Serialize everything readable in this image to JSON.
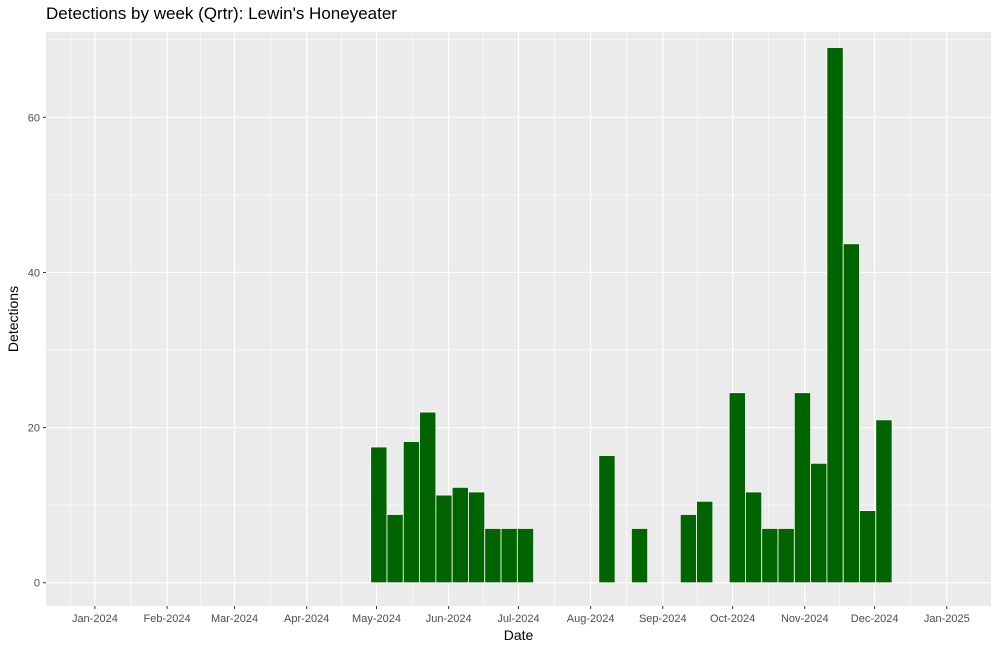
{
  "colors": {
    "panel_background": "#EBEBEB",
    "grid_major": "#FFFFFF",
    "bar_fill": "#006400",
    "bar_outline": "#FFFFFF"
  },
  "chart_data": {
    "type": "bar",
    "title": "Detections by week (Qrtr): Lewin's Honeyeater",
    "xlabel": "Date",
    "ylabel": "Detections",
    "x_axis": {
      "type": "date",
      "range": [
        "2023-12-11",
        "2025-01-20"
      ],
      "tick_dates": [
        "2024-01-01",
        "2024-02-01",
        "2024-03-01",
        "2024-04-01",
        "2024-05-01",
        "2024-06-01",
        "2024-07-01",
        "2024-08-01",
        "2024-09-01",
        "2024-10-01",
        "2024-11-01",
        "2024-12-01",
        "2025-01-01"
      ],
      "tick_labels": [
        "Jan-2024",
        "Feb-2024",
        "Mar-2024",
        "Apr-2024",
        "May-2024",
        "Jun-2024",
        "Jul-2024",
        "Aug-2024",
        "Sep-2024",
        "Oct-2024",
        "Nov-2024",
        "Dec-2024",
        "Jan-2025"
      ]
    },
    "y_axis": {
      "range": [
        -3,
        71
      ],
      "ticks": [
        0,
        20,
        40,
        60
      ],
      "tick_labels": [
        "0",
        "20",
        "40",
        "60"
      ]
    },
    "grid": true,
    "legend": "none",
    "bar_width_days": 7,
    "weeks": [
      {
        "week": "2024-04-29",
        "value": 17.5
      },
      {
        "week": "2024-05-06",
        "value": 8.8
      },
      {
        "week": "2024-05-13",
        "value": 18.2
      },
      {
        "week": "2024-05-20",
        "value": 22
      },
      {
        "week": "2024-05-27",
        "value": 11.3
      },
      {
        "week": "2024-06-03",
        "value": 12.3
      },
      {
        "week": "2024-06-10",
        "value": 11.7
      },
      {
        "week": "2024-06-17",
        "value": 7
      },
      {
        "week": "2024-06-24",
        "value": 7
      },
      {
        "week": "2024-07-01",
        "value": 7
      },
      {
        "week": "2024-08-05",
        "value": 16.4
      },
      {
        "week": "2024-08-19",
        "value": 7
      },
      {
        "week": "2024-09-09",
        "value": 8.8
      },
      {
        "week": "2024-09-16",
        "value": 10.5
      },
      {
        "week": "2024-09-30",
        "value": 24.5
      },
      {
        "week": "2024-10-07",
        "value": 11.7
      },
      {
        "week": "2024-10-14",
        "value": 7
      },
      {
        "week": "2024-10-21",
        "value": 7
      },
      {
        "week": "2024-10-28",
        "value": 24.5
      },
      {
        "week": "2024-11-04",
        "value": 15.4
      },
      {
        "week": "2024-11-11",
        "value": 69
      },
      {
        "week": "2024-11-18",
        "value": 43.7
      },
      {
        "week": "2024-11-25",
        "value": 9.3
      },
      {
        "week": "2024-12-02",
        "value": 21
      }
    ]
  }
}
